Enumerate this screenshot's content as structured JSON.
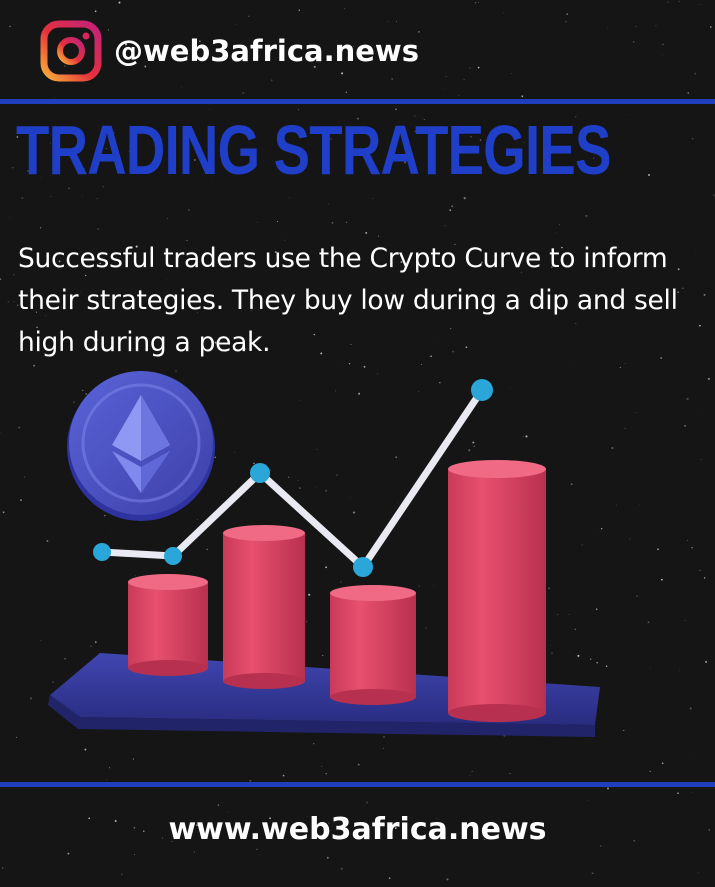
{
  "header": {
    "icon": "instagram-icon",
    "handle": "@web3africa.news"
  },
  "title": "TRADING STRATEGIES",
  "body": "Successful traders use the Crypto Curve to inform their strategies. They buy low during a dip and sell high during a peak.",
  "illustration": {
    "coin_icon": "ethereum-icon",
    "chart_icon": "bar-chart-with-trend-line-icon"
  },
  "footer": {
    "url": "www.web3africa.news"
  },
  "colors": {
    "background": "#151515",
    "accent_blue": "#1f3fc9",
    "bar_red": "#e0486a",
    "platform": "#3a3f9e",
    "dot": "#2aa6d8",
    "text": "#ffffff"
  }
}
